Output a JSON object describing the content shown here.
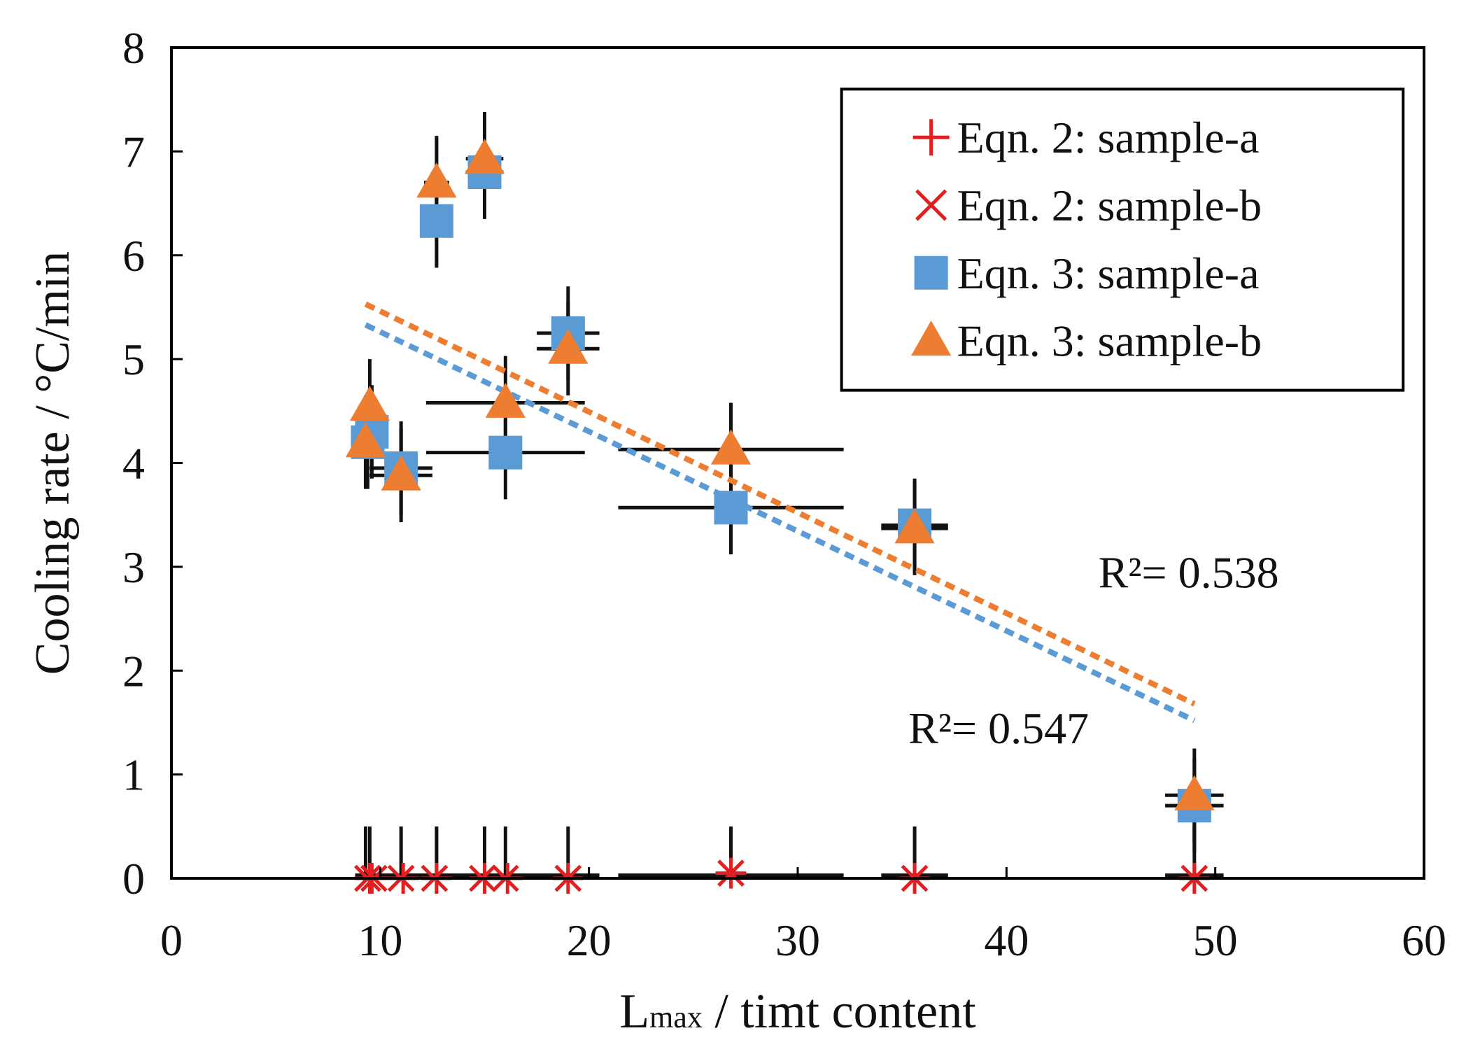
{
  "chart_data": {
    "type": "scatter",
    "title": "",
    "xlabel": {
      "main": "L",
      "sub": "max",
      "rest": " / timt content"
    },
    "ylabel": "Cooling rate / °C/min",
    "xlim": [
      0,
      60
    ],
    "ylim": [
      0,
      8
    ],
    "xticks": [
      0,
      10,
      20,
      30,
      40,
      50,
      60
    ],
    "yticks": [
      0,
      1,
      2,
      3,
      4,
      5,
      6,
      7,
      8
    ],
    "grid": false,
    "legend_position": "top-right",
    "series": [
      {
        "name": "Eqn. 2: sample-a",
        "marker": "plus",
        "color": "#e02020",
        "points": [
          {
            "x": 9.5,
            "y": 0
          },
          {
            "x": 9.6,
            "y": 0
          },
          {
            "x": 11.1,
            "y": 0
          },
          {
            "x": 12.7,
            "y": 0
          },
          {
            "x": 15.0,
            "y": 0
          },
          {
            "x": 16.1,
            "y": 0
          },
          {
            "x": 19.0,
            "y": 0
          },
          {
            "x": 26.8,
            "y": 0.05
          },
          {
            "x": 35.6,
            "y": 0
          },
          {
            "x": 49.0,
            "y": 0
          }
        ]
      },
      {
        "name": "Eqn. 2: sample-b",
        "marker": "x",
        "color": "#e02020",
        "points": [
          {
            "x": 9.4,
            "y": 0
          },
          {
            "x": 9.7,
            "y": 0
          },
          {
            "x": 11.0,
            "y": 0
          },
          {
            "x": 12.6,
            "y": 0
          },
          {
            "x": 14.9,
            "y": 0
          },
          {
            "x": 16.0,
            "y": 0
          },
          {
            "x": 19.0,
            "y": 0
          },
          {
            "x": 26.8,
            "y": 0.05
          },
          {
            "x": 35.6,
            "y": 0
          },
          {
            "x": 49.0,
            "y": 0
          }
        ]
      },
      {
        "name": "Eqn. 3: sample-a",
        "marker": "square",
        "color": "#5b9bd5",
        "points": [
          {
            "x": 9.4,
            "y": 4.2,
            "xerr": 0.5,
            "yerr": 0.45
          },
          {
            "x": 9.6,
            "y": 4.3,
            "xerr": 0.5,
            "yerr": 0.45
          },
          {
            "x": 11.0,
            "y": 3.95,
            "xerr": 1.5,
            "yerr": 0.45
          },
          {
            "x": 12.7,
            "y": 6.33,
            "xerr": 0.6,
            "yerr": 0.45
          },
          {
            "x": 15.0,
            "y": 6.8,
            "xerr": 0.9,
            "yerr": 0.45
          },
          {
            "x": 16.0,
            "y": 4.1,
            "xerr": 3.8,
            "yerr": 0.45
          },
          {
            "x": 19.0,
            "y": 5.25,
            "xerr": 1.5,
            "yerr": 0.45
          },
          {
            "x": 26.8,
            "y": 3.57,
            "xerr": 5.4,
            "yerr": 0.45
          },
          {
            "x": 35.6,
            "y": 3.4,
            "xerr": 1.6,
            "yerr": 0.45
          },
          {
            "x": 49.0,
            "y": 0.7,
            "xerr": 1.4,
            "yerr": 0.45
          }
        ]
      },
      {
        "name": "Eqn. 3: sample-b",
        "marker": "triangle",
        "color": "#ed7d31",
        "points": [
          {
            "x": 9.3,
            "y": 4.2,
            "xerr": 0.5,
            "yerr": 0.45
          },
          {
            "x": 9.5,
            "y": 4.55,
            "xerr": 0.5,
            "yerr": 0.45
          },
          {
            "x": 11.0,
            "y": 3.88,
            "xerr": 1.5,
            "yerr": 0.45
          },
          {
            "x": 12.7,
            "y": 6.7,
            "xerr": 0.6,
            "yerr": 0.45
          },
          {
            "x": 15.0,
            "y": 6.93,
            "xerr": 0.9,
            "yerr": 0.45
          },
          {
            "x": 16.0,
            "y": 4.58,
            "xerr": 3.8,
            "yerr": 0.45
          },
          {
            "x": 19.0,
            "y": 5.1,
            "xerr": 1.5,
            "yerr": 0.45
          },
          {
            "x": 26.8,
            "y": 4.13,
            "xerr": 5.4,
            "yerr": 0.45
          },
          {
            "x": 35.6,
            "y": 3.37,
            "xerr": 1.6,
            "yerr": 0.45
          },
          {
            "x": 49.0,
            "y": 0.8,
            "xerr": 1.4,
            "yerr": 0.45
          }
        ]
      }
    ],
    "trendlines": [
      {
        "series": "Eqn. 3: sample-b",
        "color": "#ed7d31",
        "x": [
          9.3,
          49.0
        ],
        "y": [
          5.53,
          1.68
        ],
        "r2_label": "R²= 0.538"
      },
      {
        "series": "Eqn. 3: sample-a",
        "color": "#5b9bd5",
        "x": [
          9.3,
          49.0
        ],
        "y": [
          5.33,
          1.52
        ],
        "r2_label": "R²= 0.547"
      }
    ]
  }
}
